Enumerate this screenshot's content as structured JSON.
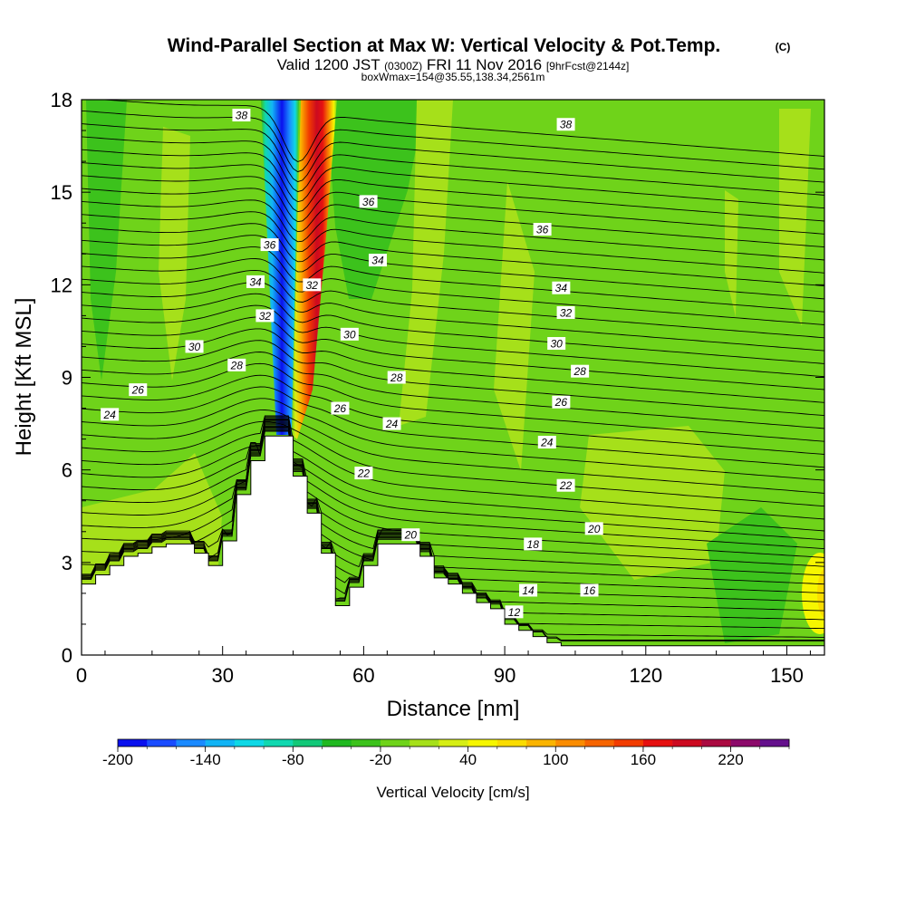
{
  "header": {
    "title": "Wind-Parallel Section at Max W: Vertical Velocity & Pot.Temp.",
    "copyright": "(C)",
    "valid_prefix": "Valid 1200 JST",
    "valid_zulu": "(0300Z)",
    "valid_date": "FRI 11 Nov 2016",
    "forecast": "[9hrFcst@2144z]",
    "boxline": "boxWmax=154@35.55,138.34,2561m"
  },
  "chart_data": {
    "type": "heatmap",
    "xlabel": "Distance [nm]",
    "ylabel": "Height [Kft MSL]",
    "xlim": [
      0,
      158
    ],
    "ylim": [
      0,
      18
    ],
    "x_ticks": [
      0,
      30,
      60,
      90,
      120,
      150
    ],
    "y_ticks": [
      0,
      3,
      6,
      9,
      12,
      15,
      18
    ],
    "colorbar": {
      "title": "Vertical Velocity [cm/s]",
      "range": [
        -200,
        260
      ],
      "labels": [
        -200,
        -140,
        -80,
        -20,
        40,
        100,
        160,
        220
      ],
      "colors": [
        "#0a10ee",
        "#1a4cff",
        "#1a8aff",
        "#12b4f5",
        "#0fd8e6",
        "#10d8b0",
        "#12c878",
        "#20b820",
        "#3cc21c",
        "#6fd31a",
        "#a6e01a",
        "#d6ee14",
        "#f6f600",
        "#fadc00",
        "#fab400",
        "#fa8c00",
        "#f66400",
        "#f23c00",
        "#e61010",
        "#cc0a20",
        "#aa0a40",
        "#8c0a6a",
        "#64108c"
      ]
    },
    "terrain": {
      "x": [
        0,
        3,
        6,
        9,
        12,
        15,
        18,
        21,
        24,
        27,
        30,
        33,
        36,
        39,
        42,
        45,
        48,
        51,
        54,
        57,
        60,
        63,
        66,
        69,
        72,
        75,
        78,
        81,
        84,
        87,
        90,
        93,
        96,
        99,
        102,
        105,
        108,
        111,
        114,
        117,
        120,
        123,
        126,
        129,
        132,
        135,
        138,
        141,
        144,
        147,
        150,
        153,
        156,
        158
      ],
      "height_kft": [
        2.3,
        2.6,
        2.9,
        3.2,
        3.3,
        3.5,
        3.6,
        3.6,
        3.3,
        2.9,
        3.7,
        5.2,
        6.3,
        7.1,
        7.1,
        5.8,
        4.6,
        3.3,
        1.6,
        2.2,
        2.9,
        3.6,
        3.6,
        3.6,
        3.2,
        2.5,
        2.3,
        2.0,
        1.7,
        1.5,
        1.0,
        0.8,
        0.6,
        0.4,
        0.3,
        0.3,
        0.3,
        0.3,
        0.3,
        0.3,
        0.3,
        0.3,
        0.3,
        0.3,
        0.3,
        0.3,
        0.3,
        0.3,
        0.3,
        0.3,
        0.3,
        0.3,
        0.3,
        0.3
      ]
    },
    "isentrope_labels": [
      {
        "text": "38",
        "x": 34,
        "y": 17.5
      },
      {
        "text": "38",
        "x": 103,
        "y": 17.2
      },
      {
        "text": "36",
        "x": 61,
        "y": 14.7
      },
      {
        "text": "36",
        "x": 98,
        "y": 13.8
      },
      {
        "text": "36",
        "x": 40,
        "y": 13.3
      },
      {
        "text": "34",
        "x": 63,
        "y": 12.8
      },
      {
        "text": "34",
        "x": 102,
        "y": 11.9
      },
      {
        "text": "34",
        "x": 37,
        "y": 12.1
      },
      {
        "text": "32",
        "x": 49,
        "y": 12.0
      },
      {
        "text": "32",
        "x": 103,
        "y": 11.1
      },
      {
        "text": "32",
        "x": 39,
        "y": 11.0
      },
      {
        "text": "30",
        "x": 24,
        "y": 10.0
      },
      {
        "text": "30",
        "x": 57,
        "y": 10.4
      },
      {
        "text": "30",
        "x": 101,
        "y": 10.1
      },
      {
        "text": "28",
        "x": 33,
        "y": 9.4
      },
      {
        "text": "28",
        "x": 67,
        "y": 9.0
      },
      {
        "text": "28",
        "x": 106,
        "y": 9.2
      },
      {
        "text": "26",
        "x": 12,
        "y": 8.6
      },
      {
        "text": "26",
        "x": 55,
        "y": 8.0
      },
      {
        "text": "26",
        "x": 102,
        "y": 8.2
      },
      {
        "text": "24",
        "x": 6,
        "y": 7.8
      },
      {
        "text": "24",
        "x": 66,
        "y": 7.5
      },
      {
        "text": "24",
        "x": 99,
        "y": 6.9
      },
      {
        "text": "22",
        "x": 60,
        "y": 5.9
      },
      {
        "text": "22",
        "x": 103,
        "y": 5.5
      },
      {
        "text": "20",
        "x": 70,
        "y": 3.9
      },
      {
        "text": "20",
        "x": 109,
        "y": 4.1
      },
      {
        "text": "18",
        "x": 96,
        "y": 3.6
      },
      {
        "text": "16",
        "x": 108,
        "y": 2.1
      },
      {
        "text": "14",
        "x": 95,
        "y": 2.1
      },
      {
        "text": "12",
        "x": 92,
        "y": 1.4
      }
    ]
  }
}
